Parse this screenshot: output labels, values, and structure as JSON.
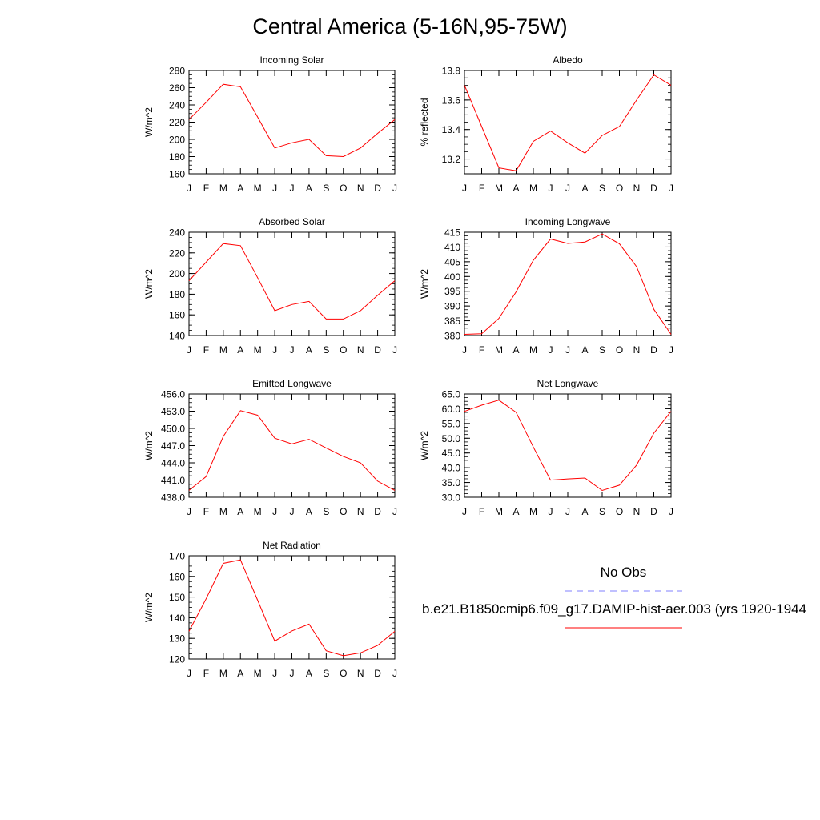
{
  "page": {
    "title": "Central America (5-16N,95-75W)"
  },
  "colors": {
    "model_line": "#ff0000",
    "obs_line": "#8080ff",
    "axis": "#000000"
  },
  "legend": {
    "obs_label": "No Obs",
    "model_label": "b.e21.B1850cmip6.f09_g17.DAMIP-hist-aer.003 (yrs 1920-1944"
  },
  "chart_data": [
    {
      "type": "line",
      "title": "Incoming Solar",
      "ylabel": "W/m^2",
      "categories": [
        "J",
        "F",
        "M",
        "A",
        "M",
        "J",
        "J",
        "A",
        "S",
        "O",
        "N",
        "D",
        "J"
      ],
      "ylim": [
        160,
        280
      ],
      "yticks": [
        160,
        180,
        200,
        220,
        240,
        260,
        280
      ],
      "ytick_format": "0",
      "values": [
        223,
        243,
        264,
        261,
        226,
        190,
        196,
        200,
        181,
        180,
        190,
        207,
        223
      ]
    },
    {
      "type": "line",
      "title": "Albedo",
      "ylabel": "% reflected",
      "categories": [
        "J",
        "F",
        "M",
        "A",
        "M",
        "J",
        "J",
        "A",
        "S",
        "O",
        "N",
        "D",
        "J"
      ],
      "ylim": [
        13.1,
        13.8
      ],
      "yticks": [
        13.2,
        13.4,
        13.6,
        13.8
      ],
      "ytick_format": "1",
      "values": [
        13.7,
        13.42,
        13.14,
        13.12,
        13.32,
        13.39,
        13.31,
        13.24,
        13.36,
        13.42,
        13.6,
        13.77,
        13.7
      ]
    },
    {
      "type": "line",
      "title": "Absorbed Solar",
      "ylabel": "W/m^2",
      "categories": [
        "J",
        "F",
        "M",
        "A",
        "M",
        "J",
        "J",
        "A",
        "S",
        "O",
        "N",
        "D",
        "J"
      ],
      "ylim": [
        140,
        240
      ],
      "yticks": [
        140,
        160,
        180,
        200,
        220,
        240
      ],
      "ytick_format": "0",
      "values": [
        193,
        211,
        229,
        227,
        196,
        164,
        170,
        173,
        156,
        156,
        164,
        179,
        193
      ]
    },
    {
      "type": "line",
      "title": "Incoming Longwave",
      "ylabel": "W/m^2",
      "categories": [
        "J",
        "F",
        "M",
        "A",
        "M",
        "J",
        "J",
        "A",
        "S",
        "O",
        "N",
        "D",
        "J"
      ],
      "ylim": [
        380,
        415
      ],
      "yticks": [
        380,
        385,
        390,
        395,
        400,
        405,
        410,
        415
      ],
      "ytick_format": "0",
      "values": [
        380.4,
        380.6,
        385.8,
        394.8,
        405.5,
        412.7,
        411.2,
        411.7,
        414.4,
        411.1,
        403.3,
        388.9,
        380.4
      ]
    },
    {
      "type": "line",
      "title": "Emitted Longwave",
      "ylabel": "W/m^2",
      "categories": [
        "J",
        "F",
        "M",
        "A",
        "M",
        "J",
        "J",
        "A",
        "S",
        "O",
        "N",
        "D",
        "J"
      ],
      "ylim": [
        438,
        456
      ],
      "yticks": [
        438,
        441,
        444,
        447,
        450,
        453,
        456
      ],
      "ytick_format": "1",
      "values": [
        439.2,
        441.6,
        448.6,
        453.1,
        452.3,
        448.3,
        447.3,
        448.1,
        446.6,
        445.1,
        444.0,
        440.8,
        439.2
      ]
    },
    {
      "type": "line",
      "title": "Net Longwave",
      "ylabel": "W/m^2",
      "categories": [
        "J",
        "F",
        "M",
        "A",
        "M",
        "J",
        "J",
        "A",
        "S",
        "O",
        "N",
        "D",
        "J"
      ],
      "ylim": [
        30,
        65
      ],
      "yticks": [
        30,
        35,
        40,
        45,
        50,
        55,
        60,
        65
      ],
      "ytick_format": "1",
      "values": [
        59.1,
        61.2,
        62.9,
        58.8,
        47.0,
        35.8,
        36.2,
        36.5,
        32.3,
        34.1,
        40.9,
        51.7,
        59.1
      ]
    },
    {
      "type": "line",
      "title": "Net Radiation",
      "ylabel": "W/m^2",
      "categories": [
        "J",
        "F",
        "M",
        "A",
        "M",
        "J",
        "J",
        "A",
        "S",
        "O",
        "N",
        "D",
        "J"
      ],
      "ylim": [
        120,
        170
      ],
      "yticks": [
        120,
        130,
        140,
        150,
        160,
        170
      ],
      "ytick_format": "0",
      "values": [
        133.4,
        149.2,
        166.3,
        168.0,
        148.5,
        128.7,
        133.6,
        136.9,
        124.0,
        121.6,
        123.0,
        126.6,
        133.4
      ]
    }
  ]
}
